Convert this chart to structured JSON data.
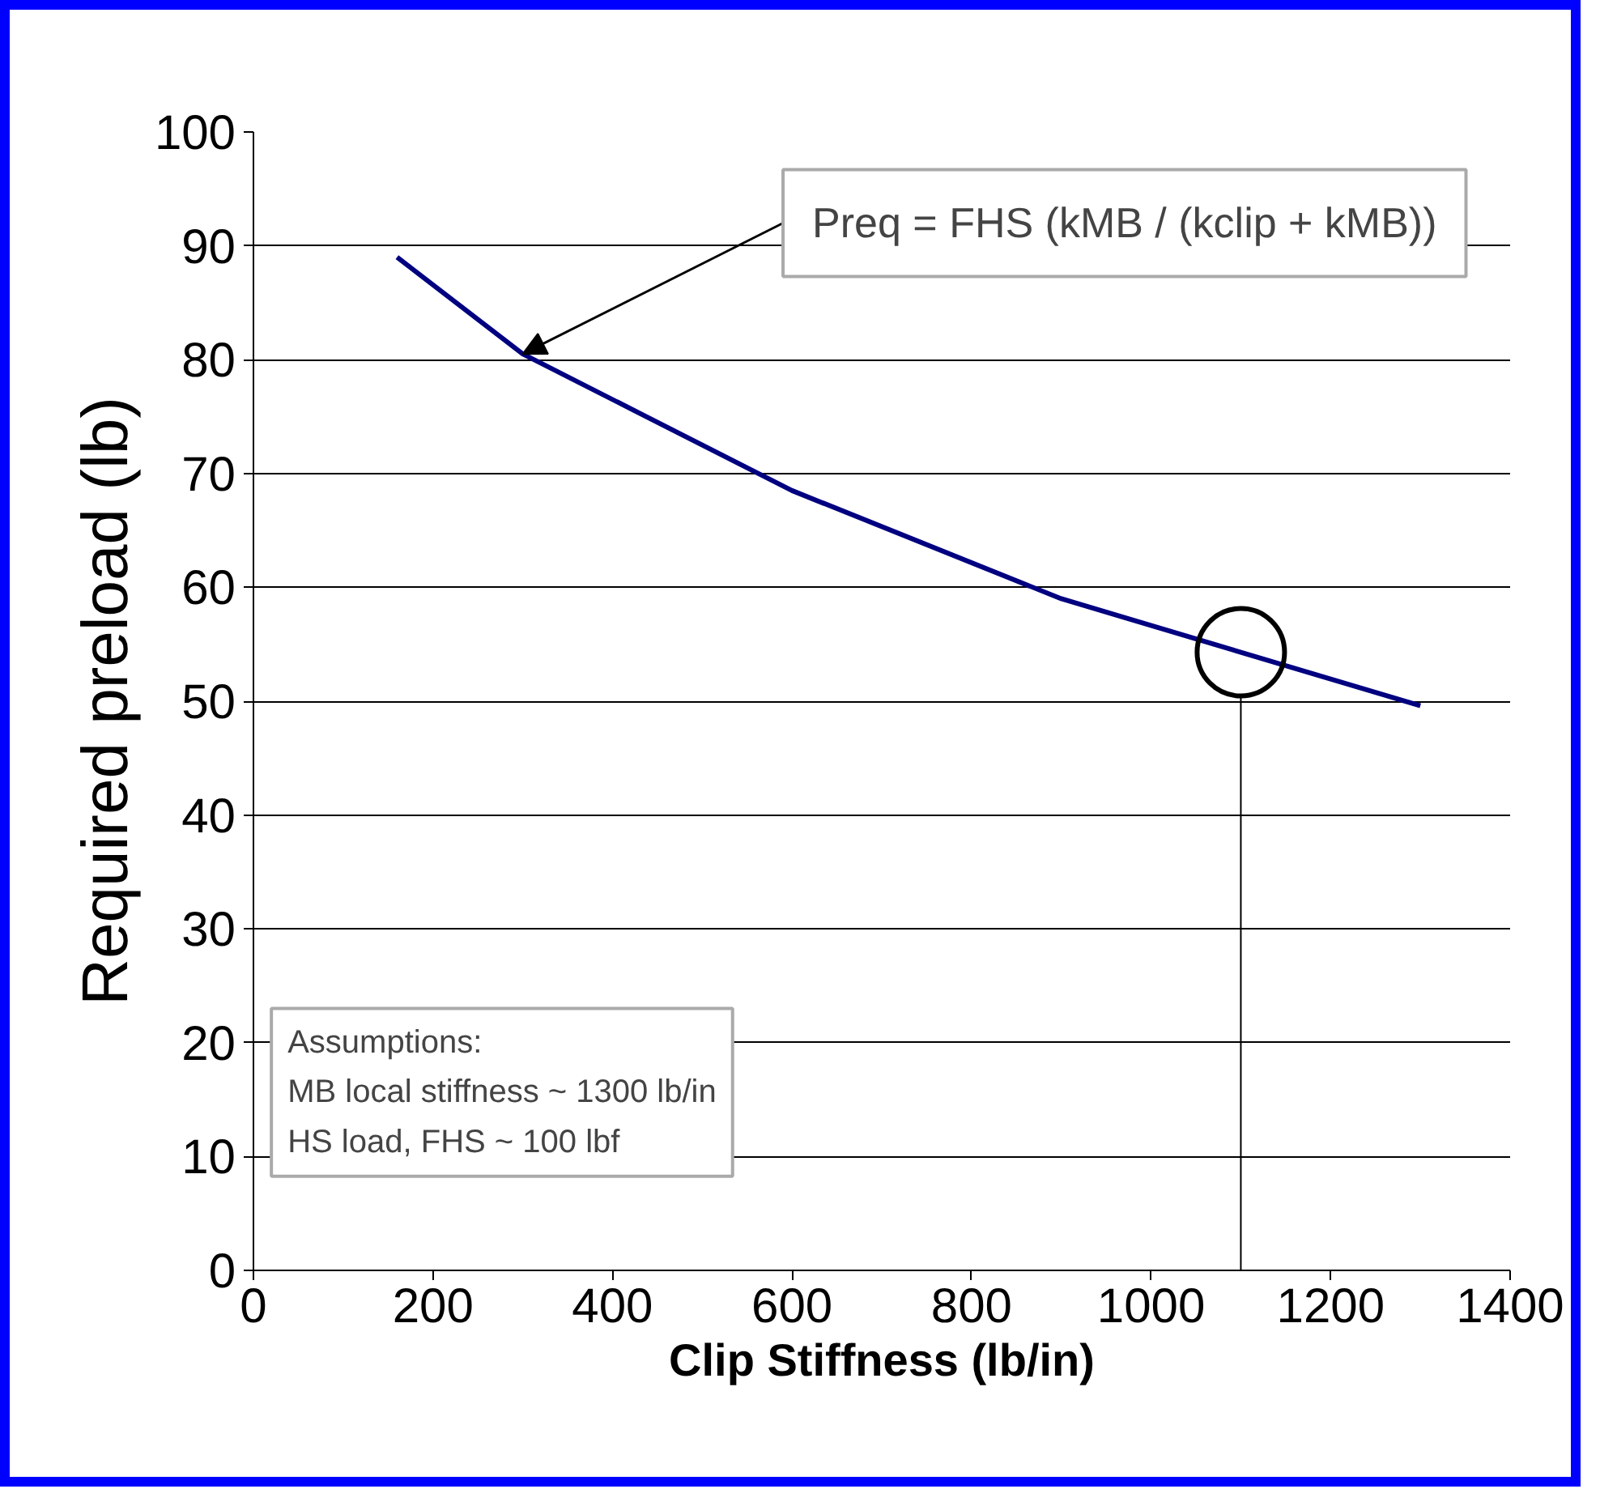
{
  "chart_data": {
    "type": "line",
    "x": [
      160,
      300,
      600,
      900,
      1300
    ],
    "series": [
      {
        "color": "#000080",
        "values": [
          89,
          80.5,
          68.5,
          59,
          49.6
        ]
      }
    ],
    "xlabel": "Clip Stiffness (lb/in)",
    "ylabel": "Required preload (lb)",
    "xlim": [
      0,
      1400
    ],
    "ylim": [
      0,
      100
    ],
    "xticks": [
      0,
      200,
      400,
      600,
      800,
      1000,
      1200,
      1400
    ],
    "yticks": [
      0,
      10,
      20,
      30,
      40,
      50,
      60,
      70,
      80,
      90,
      100
    ],
    "grid": "y",
    "marker": "none",
    "line_style": "solid",
    "ref_lines": [
      {
        "axis": "x",
        "value": 1100,
        "label": null
      }
    ],
    "annotations": [
      {
        "text": "Preq = FHS (kMB / (kclip + kMB))",
        "x": 300,
        "y": 80.5
      },
      "Assumptions:\nMB local stiffness ~ 1300 lb/in\nHS load, FHS ~ 100 lbf"
    ]
  }
}
